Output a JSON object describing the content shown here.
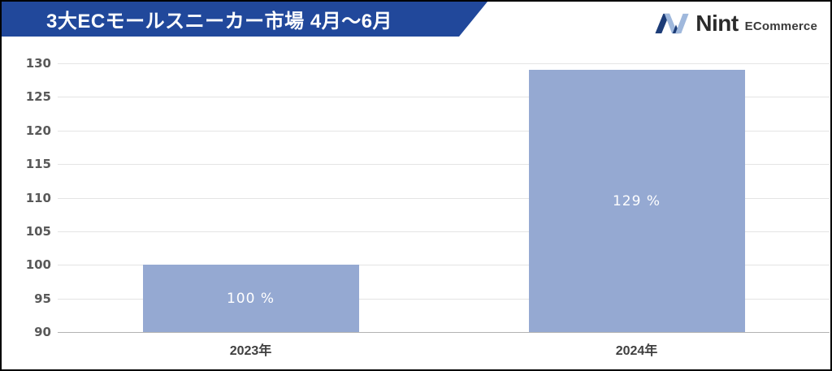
{
  "header": {
    "title": "3大ECモールスニーカー市場 4月〜6月",
    "banner_color": "#21489B"
  },
  "logo": {
    "name": "Nint",
    "suffix": "ECommerce",
    "mark_dark_color": "#1C3C77",
    "mark_light_color": "#9FB8DC"
  },
  "chart_data": {
    "type": "bar",
    "title": "3大ECモールスニーカー市場 4月〜6月",
    "categories": [
      "2023年",
      "2024年"
    ],
    "values": [
      100,
      129
    ],
    "data_labels": [
      "100 %",
      "129 %"
    ],
    "xlabel": "",
    "ylabel": "",
    "ylim": [
      90,
      130
    ],
    "ytick_step": 5,
    "yticks": [
      90,
      95,
      100,
      105,
      110,
      115,
      120,
      125,
      130
    ],
    "grid": true,
    "legend": false,
    "bar_color": "#95A9D2",
    "data_label_color": "#FFFFFF",
    "unit": "%"
  }
}
